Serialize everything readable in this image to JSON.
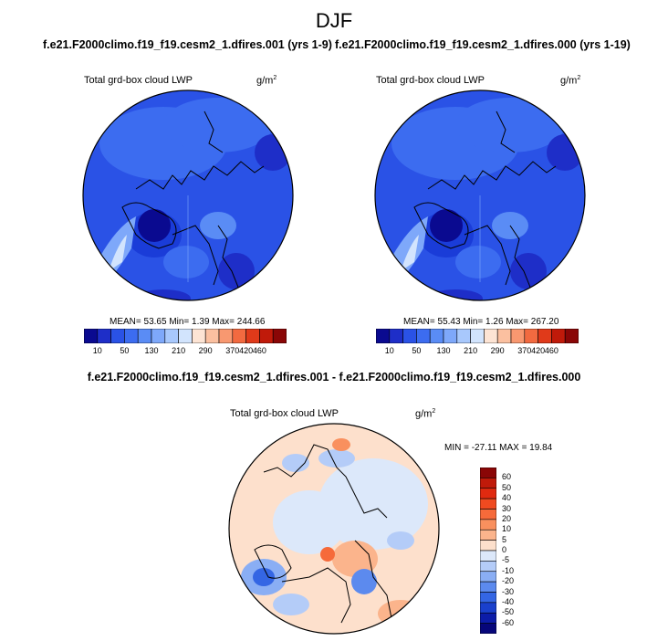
{
  "season": "DJF",
  "panels": [
    {
      "run_title": "f.e21.F2000climo.f19_f19.cesm2_1.dfires.001 (yrs 1-9)",
      "variable": "Total grd-box cloud LWP",
      "units": "g/m",
      "units_exp": "2",
      "stats": "MEAN=  53.65  Min=   1.39  Max= 244.66"
    },
    {
      "run_title": "f.e21.F2000climo.f19_f19.cesm2_1.dfires.000 (yrs 1-19)",
      "variable": "Total grd-box cloud LWP",
      "units": "g/m",
      "units_exp": "2",
      "stats": "MEAN=  55.43  Min=   1.26  Max= 267.20"
    }
  ],
  "colorbar": {
    "labels": [
      "10",
      "50",
      "130",
      "210",
      "290",
      "370",
      "420",
      "460"
    ],
    "colors": [
      "#0a0a90",
      "#1e2ec8",
      "#2a52e6",
      "#3c6cf0",
      "#5a8cf5",
      "#7ea8fa",
      "#a8c8fc",
      "#d2e4fd",
      "#fde4d4",
      "#fbc0a0",
      "#f89870",
      "#f26a40",
      "#e03a1a",
      "#c01a0a",
      "#8a0606"
    ]
  },
  "diff": {
    "title": "f.e21.F2000climo.f19_f19.cesm2_1.dfires.001 - f.e21.F2000climo.f19_f19.cesm2_1.dfires.000",
    "variable": "Total grd-box cloud LWP",
    "units": "g/m",
    "units_exp": "2",
    "stats": "MIN = -27.11  MAX =  19.84",
    "colorbar_labels": [
      "60",
      "50",
      "40",
      "30",
      "20",
      "10",
      "5",
      "0",
      "-5",
      "-10",
      "-20",
      "-30",
      "-40",
      "-50",
      "-60"
    ],
    "colorbar_colors": [
      "#8a0606",
      "#c01a0a",
      "#e02a10",
      "#f04a20",
      "#f66a3a",
      "#f9905e",
      "#fbb48c",
      "#fde0cc",
      "#dce8fa",
      "#b4ccf8",
      "#8aaef4",
      "#5c8aee",
      "#3466e4",
      "#1a40cc",
      "#0c1ca8",
      "#06067a"
    ]
  }
}
